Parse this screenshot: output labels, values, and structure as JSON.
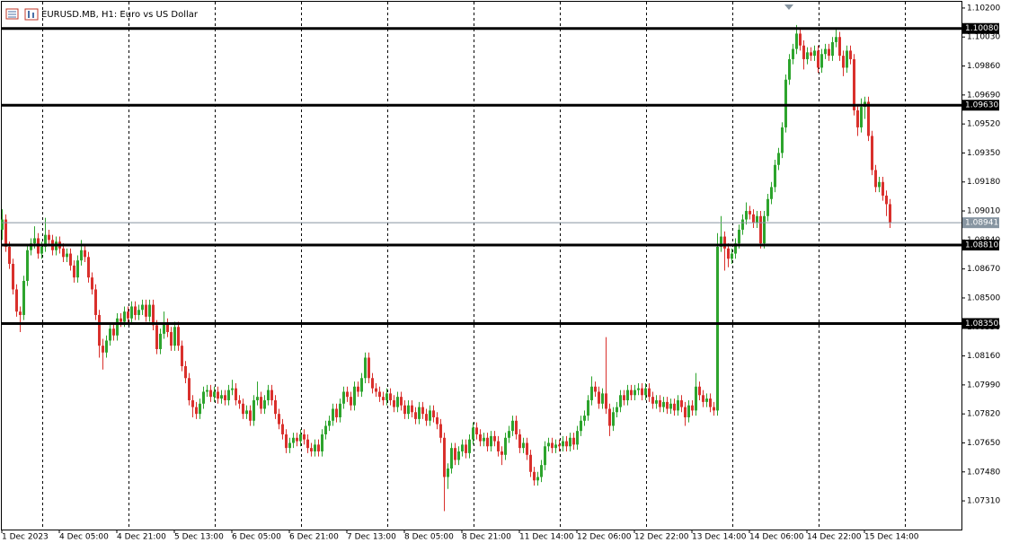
{
  "chart_data": {
    "type": "candlestick",
    "title": "EURUSD.MB, H1: Euro vs US Dollar",
    "up_color": "#2da42d",
    "down_color": "#d9302c",
    "level_color": "#000000",
    "current_color": "#8795a1",
    "xlim": [
      -0.5,
      267
    ],
    "ylim": [
      1.07142,
      1.10247
    ],
    "xticks": [
      {
        "value": 0,
        "label": "1 Dec 2023"
      },
      {
        "value": 16,
        "label": "4 Dec 05:00"
      },
      {
        "value": 32,
        "label": "4 Dec 21:00"
      },
      {
        "value": 48,
        "label": "5 Dec 13:00"
      },
      {
        "value": 64,
        "label": "6 Dec 05:00"
      },
      {
        "value": 80,
        "label": "6 Dec 21:00"
      },
      {
        "value": 96,
        "label": "7 Dec 13:00"
      },
      {
        "value": 112,
        "label": "8 Dec 05:00"
      },
      {
        "value": 128,
        "label": "8 Dec 21:00"
      },
      {
        "value": 144,
        "label": "11 Dec 14:00"
      },
      {
        "value": 160,
        "label": "12 Dec 06:00"
      },
      {
        "value": 176,
        "label": "12 Dec 22:00"
      },
      {
        "value": 192,
        "label": "13 Dec 14:00"
      },
      {
        "value": 208,
        "label": "14 Dec 06:00"
      },
      {
        "value": 224,
        "label": "14 Dec 22:00"
      },
      {
        "value": 240,
        "label": "15 Dec 14:00"
      }
    ],
    "yticks": [
      {
        "value": 1.102,
        "label": "1.10200"
      },
      {
        "value": 1.1003,
        "label": "1.10030"
      },
      {
        "value": 1.0986,
        "label": "1.09860"
      },
      {
        "value": 1.0969,
        "label": "1.09690"
      },
      {
        "value": 1.0952,
        "label": "1.09520"
      },
      {
        "value": 1.0935,
        "label": "1.09350"
      },
      {
        "value": 1.0918,
        "label": "1.09180"
      },
      {
        "value": 1.0901,
        "label": "1.09010"
      },
      {
        "value": 1.0884,
        "label": "1.08840"
      },
      {
        "value": 1.0867,
        "label": "1.08670"
      },
      {
        "value": 1.085,
        "label": "1.08500"
      },
      {
        "value": 1.0833,
        "label": "1.08330"
      },
      {
        "value": 1.0816,
        "label": "1.08160"
      },
      {
        "value": 1.0799,
        "label": "1.07990"
      },
      {
        "value": 1.0782,
        "label": "1.07820"
      },
      {
        "value": 1.0765,
        "label": "1.07650"
      },
      {
        "value": 1.0748,
        "label": "1.07480"
      },
      {
        "value": 1.0731,
        "label": "1.07310"
      }
    ],
    "levels": [
      {
        "value": 1.1008,
        "label": "1.10080"
      },
      {
        "value": 1.0963,
        "label": "1.09630"
      },
      {
        "value": 1.0881,
        "label": "1.08810"
      },
      {
        "value": 1.0835,
        "label": "1.08350"
      }
    ],
    "current_price": {
      "value": 1.08941,
      "label": "1.08941"
    },
    "open": [
      1.089,
      1.0896,
      1.088,
      1.087,
      1.0855,
      1.0842,
      1.084,
      1.086,
      1.0878,
      1.0882,
      1.0885,
      1.0876,
      1.088,
      1.0887,
      1.0884,
      1.0878,
      1.0883,
      1.0879,
      1.0874,
      1.0876,
      1.0869,
      1.0862,
      1.0872,
      1.0878,
      1.0874,
      1.0862,
      1.0855,
      1.084,
      1.0822,
      1.0818,
      1.0825,
      1.0832,
      1.0828,
      1.0838,
      1.0836,
      1.0842,
      1.0838,
      1.0845,
      1.084,
      1.0843,
      1.0846,
      1.0839,
      1.0846,
      1.0834,
      1.082,
      1.0829,
      1.0835,
      1.083,
      1.0822,
      1.0833,
      1.0822,
      1.081,
      1.0803,
      1.079,
      1.0786,
      1.0782,
      1.0788,
      1.0795,
      1.0796,
      1.0792,
      1.0795,
      1.0791,
      1.0793,
      1.079,
      1.0796,
      1.0797,
      1.079,
      1.0788,
      1.0782,
      1.0784,
      1.0778,
      1.079,
      1.0792,
      1.0785,
      1.079,
      1.0796,
      1.079,
      1.0782,
      1.0776,
      1.077,
      1.0762,
      1.0765,
      1.0768,
      1.0766,
      1.077,
      1.0767,
      1.0762,
      1.076,
      1.0764,
      1.076,
      1.077,
      1.0775,
      1.0778,
      1.0785,
      1.078,
      1.0788,
      1.0795,
      1.0792,
      1.0787,
      1.0798,
      1.0795,
      1.0803,
      1.0815,
      1.0803,
      1.0797,
      1.0795,
      1.0792,
      1.079,
      1.0794,
      1.079,
      1.0786,
      1.0792,
      1.0787,
      1.0782,
      1.0787,
      1.0783,
      1.0779,
      1.0786,
      1.0782,
      1.0778,
      1.0784,
      1.078,
      1.0776,
      1.0768,
      1.0745,
      1.075,
      1.0762,
      1.0755,
      1.076,
      1.0764,
      1.0759,
      1.0767,
      1.0774,
      1.077,
      1.0766,
      1.0768,
      1.0763,
      1.0769,
      1.0766,
      1.076,
      1.0758,
      1.0768,
      1.0772,
      1.0778,
      1.077,
      1.0762,
      1.0765,
      1.0758,
      1.0748,
      1.0743,
      1.0745,
      1.0752,
      1.0763,
      1.0765,
      1.0762,
      1.0764,
      1.0763,
      1.0766,
      1.0763,
      1.0768,
      1.0764,
      1.0772,
      1.0778,
      1.0781,
      1.079,
      1.0798,
      1.0795,
      1.0788,
      1.0794,
      1.0785,
      1.0775,
      1.0783,
      1.0786,
      1.0793,
      1.079,
      1.0796,
      1.0793,
      1.0796,
      1.0797,
      1.0793,
      1.0797,
      1.0792,
      1.0788,
      1.079,
      1.0786,
      1.0789,
      1.0785,
      1.0788,
      1.0784,
      1.079,
      1.0786,
      1.078,
      1.0787,
      1.0784,
      1.0798,
      1.0793,
      1.0789,
      1.0791,
      1.0786,
      1.0784,
      1.088,
      1.0886,
      1.0879,
      1.0873,
      1.0876,
      1.0882,
      1.089,
      1.0896,
      1.0901,
      1.0899,
      1.0894,
      1.0898,
      1.0882,
      1.0898,
      1.0908,
      1.0915,
      1.0928,
      1.0935,
      1.095,
      1.0978,
      1.099,
      1.0996,
      1.1005,
      1.0998,
      1.099,
      1.0994,
      1.0992,
      1.0995,
      1.0985,
      1.0993,
      1.0996,
      1.0992,
      1.1,
      1.1003,
      1.0992,
      1.0985,
      1.0995,
      1.099,
      1.096,
      1.095,
      1.0962,
      1.0965,
      1.0945,
      1.0925,
      1.0915,
      1.0918,
      1.091,
      1.0905
    ],
    "high": [
      1.0902,
      1.0899,
      1.0883,
      1.0873,
      1.0858,
      1.0845,
      1.0863,
      1.0881,
      1.0885,
      1.0892,
      1.0888,
      1.0883,
      1.0897,
      1.089,
      1.0887,
      1.0886,
      1.0886,
      1.0882,
      1.0879,
      1.0879,
      1.0872,
      1.0875,
      1.0884,
      1.0881,
      1.0877,
      1.0865,
      1.0858,
      1.0843,
      1.0826,
      1.0828,
      1.0835,
      1.0835,
      1.0841,
      1.0841,
      1.0845,
      1.0845,
      1.0848,
      1.0848,
      1.0846,
      1.0849,
      1.0849,
      1.0849,
      1.0849,
      1.0837,
      1.0832,
      1.0842,
      1.0838,
      1.0833,
      1.0836,
      1.0836,
      1.0825,
      1.0813,
      1.0806,
      1.0793,
      1.0789,
      1.0791,
      1.0798,
      1.0799,
      1.0799,
      1.0798,
      1.0798,
      1.0796,
      1.0796,
      1.0799,
      1.0802,
      1.08,
      1.0793,
      1.0791,
      1.0787,
      1.0787,
      1.0793,
      1.0801,
      1.0795,
      1.0793,
      1.0799,
      1.0799,
      1.0793,
      1.0785,
      1.0779,
      1.0773,
      1.0768,
      1.0771,
      1.0771,
      1.0773,
      1.0773,
      1.077,
      1.0765,
      1.0767,
      1.0767,
      1.0773,
      1.0778,
      1.0781,
      1.0788,
      1.0788,
      1.0791,
      1.0798,
      1.0798,
      1.0795,
      1.0801,
      1.0801,
      1.0806,
      1.0818,
      1.0818,
      1.0806,
      1.08,
      1.0798,
      1.0795,
      1.0797,
      1.0797,
      1.0793,
      1.0795,
      1.0795,
      1.079,
      1.079,
      1.079,
      1.0786,
      1.0789,
      1.0789,
      1.0785,
      1.0787,
      1.0787,
      1.0783,
      1.0779,
      1.0771,
      1.0753,
      1.0765,
      1.0765,
      1.0763,
      1.0767,
      1.0767,
      1.077,
      1.0777,
      1.0777,
      1.0773,
      1.0771,
      1.0771,
      1.0772,
      1.0772,
      1.0769,
      1.0763,
      1.0771,
      1.0775,
      1.0781,
      1.0781,
      1.0773,
      1.0768,
      1.0768,
      1.0761,
      1.0751,
      1.0748,
      1.0755,
      1.0766,
      1.0768,
      1.0768,
      1.0767,
      1.0767,
      1.0769,
      1.0769,
      1.0771,
      1.0771,
      1.0775,
      1.0781,
      1.0784,
      1.0793,
      1.0804,
      1.0801,
      1.0798,
      1.0797,
      1.0827,
      1.0788,
      1.0786,
      1.0789,
      1.0796,
      1.0796,
      1.0799,
      1.0799,
      1.0799,
      1.08,
      1.08,
      1.08,
      1.08,
      1.0795,
      1.0793,
      1.0793,
      1.0792,
      1.0792,
      1.0791,
      1.0791,
      1.0793,
      1.0793,
      1.0789,
      1.079,
      1.079,
      1.0806,
      1.0801,
      1.0796,
      1.0794,
      1.0794,
      1.0789,
      1.0888,
      1.0898,
      1.0889,
      1.0882,
      1.0879,
      1.0885,
      1.0893,
      1.0899,
      1.0906,
      1.0904,
      1.0902,
      1.0901,
      1.0901,
      1.0901,
      1.0911,
      1.0918,
      1.0931,
      1.0938,
      1.0953,
      1.0981,
      1.0993,
      1.0999,
      1.101,
      1.1008,
      1.1001,
      1.0997,
      1.0997,
      1.0998,
      1.0998,
      1.0996,
      1.0999,
      1.0999,
      1.1003,
      1.1008,
      1.1006,
      1.0995,
      1.0998,
      1.0998,
      1.0993,
      1.0963,
      1.0967,
      1.0968,
      1.0968,
      1.0948,
      1.0928,
      1.0921,
      1.0921,
      1.0913,
      1.0908
    ],
    "low": [
      1.0884,
      1.0877,
      1.0867,
      1.0852,
      1.0839,
      1.083,
      1.0837,
      1.0857,
      1.0875,
      1.0879,
      1.0873,
      1.0873,
      1.0877,
      1.0881,
      1.0875,
      1.0875,
      1.0876,
      1.0871,
      1.0871,
      1.0866,
      1.0859,
      1.0859,
      1.0869,
      1.0871,
      1.0859,
      1.0852,
      1.0837,
      1.0815,
      1.0808,
      1.0815,
      1.0822,
      1.0825,
      1.0825,
      1.0833,
      1.0833,
      1.0835,
      1.0835,
      1.0837,
      1.0837,
      1.084,
      1.0836,
      1.0836,
      1.0831,
      1.0817,
      1.0817,
      1.0826,
      1.0827,
      1.0819,
      1.0819,
      1.0819,
      1.0807,
      1.08,
      1.0787,
      1.078,
      1.0779,
      1.0779,
      1.0785,
      1.0792,
      1.0789,
      1.0789,
      1.0788,
      1.0788,
      1.0787,
      1.0787,
      1.0793,
      1.0787,
      1.0785,
      1.0779,
      1.0779,
      1.0775,
      1.0775,
      1.0787,
      1.0782,
      1.0782,
      1.0787,
      1.0787,
      1.0779,
      1.0773,
      1.0767,
      1.0759,
      1.0759,
      1.0762,
      1.0763,
      1.0763,
      1.0764,
      1.0759,
      1.0757,
      1.0757,
      1.0757,
      1.0757,
      1.0767,
      1.0772,
      1.0775,
      1.0777,
      1.0777,
      1.0785,
      1.0789,
      1.0784,
      1.0784,
      1.0792,
      1.0792,
      1.08,
      1.08,
      1.0794,
      1.0792,
      1.0789,
      1.0787,
      1.0787,
      1.0787,
      1.0783,
      1.0783,
      1.0784,
      1.0779,
      1.0779,
      1.078,
      1.0776,
      1.0776,
      1.0779,
      1.0775,
      1.0775,
      1.0777,
      1.0773,
      1.0765,
      1.0725,
      1.0738,
      1.0747,
      1.0752,
      1.0752,
      1.0757,
      1.0756,
      1.0756,
      1.0764,
      1.0767,
      1.0763,
      1.0763,
      1.076,
      1.076,
      1.0763,
      1.0757,
      1.0752,
      1.0755,
      1.0765,
      1.0769,
      1.0767,
      1.0759,
      1.0759,
      1.0755,
      1.0745,
      1.074,
      1.074,
      1.0742,
      1.0749,
      1.076,
      1.0759,
      1.0759,
      1.076,
      1.076,
      1.076,
      1.076,
      1.0761,
      1.0761,
      1.0769,
      1.0775,
      1.0778,
      1.0787,
      1.0792,
      1.0785,
      1.0785,
      1.0782,
      1.0769,
      1.0772,
      1.078,
      1.0783,
      1.0787,
      1.0787,
      1.079,
      1.079,
      1.0793,
      1.079,
      1.079,
      1.0789,
      1.0785,
      1.0785,
      1.0783,
      1.0783,
      1.0782,
      1.0782,
      1.0781,
      1.0781,
      1.0783,
      1.0775,
      1.0777,
      1.0781,
      1.0781,
      1.079,
      1.0786,
      1.0786,
      1.0783,
      1.0781,
      1.0781,
      1.0877,
      1.0866,
      1.0868,
      1.087,
      1.0873,
      1.0879,
      1.0887,
      1.0893,
      1.0896,
      1.0891,
      1.0891,
      1.0879,
      1.0879,
      1.0895,
      1.0905,
      1.0912,
      1.0925,
      1.0932,
      1.0947,
      1.0975,
      1.0987,
      1.0993,
      1.0995,
      1.0984,
      1.0987,
      1.0989,
      1.0989,
      1.0982,
      1.0982,
      1.099,
      1.0989,
      1.0989,
      1.0997,
      1.0989,
      1.098,
      1.0982,
      1.0987,
      1.0957,
      1.0945,
      1.0947,
      1.0955,
      1.0942,
      1.0922,
      1.0912,
      1.0912,
      1.0907,
      1.0898,
      1.0891
    ],
    "close": [
      1.0896,
      1.088,
      1.087,
      1.0855,
      1.0842,
      1.084,
      1.086,
      1.0878,
      1.0882,
      1.0885,
      1.0876,
      1.088,
      1.0887,
      1.0884,
      1.0878,
      1.0883,
      1.0879,
      1.0874,
      1.0876,
      1.0869,
      1.0862,
      1.0872,
      1.0878,
      1.0874,
      1.0862,
      1.0855,
      1.084,
      1.0822,
      1.0818,
      1.0825,
      1.0832,
      1.0828,
      1.0838,
      1.0836,
      1.0842,
      1.0838,
      1.0845,
      1.084,
      1.0843,
      1.0846,
      1.0839,
      1.0846,
      1.0834,
      1.082,
      1.0829,
      1.0835,
      1.083,
      1.0822,
      1.0833,
      1.0822,
      1.081,
      1.0803,
      1.079,
      1.0786,
      1.0782,
      1.0788,
      1.0795,
      1.0796,
      1.0792,
      1.0795,
      1.0791,
      1.0793,
      1.079,
      1.0796,
      1.0797,
      1.079,
      1.0788,
      1.0782,
      1.0784,
      1.0778,
      1.079,
      1.0792,
      1.0785,
      1.079,
      1.0796,
      1.079,
      1.0782,
      1.0776,
      1.077,
      1.0762,
      1.0765,
      1.0768,
      1.0766,
      1.077,
      1.0767,
      1.0762,
      1.076,
      1.0764,
      1.076,
      1.077,
      1.0775,
      1.0778,
      1.0785,
      1.078,
      1.0788,
      1.0795,
      1.0792,
      1.0787,
      1.0798,
      1.0795,
      1.0803,
      1.0815,
      1.0803,
      1.0797,
      1.0795,
      1.0792,
      1.079,
      1.0794,
      1.079,
      1.0786,
      1.0792,
      1.0787,
      1.0782,
      1.0787,
      1.0783,
      1.0779,
      1.0786,
      1.0782,
      1.0778,
      1.0784,
      1.078,
      1.0776,
      1.0768,
      1.0745,
      1.075,
      1.0762,
      1.0755,
      1.076,
      1.0764,
      1.0759,
      1.0767,
      1.0774,
      1.077,
      1.0766,
      1.0768,
      1.0763,
      1.0769,
      1.0766,
      1.076,
      1.0758,
      1.0768,
      1.0772,
      1.0778,
      1.077,
      1.0762,
      1.0765,
      1.0758,
      1.0748,
      1.0743,
      1.0745,
      1.0752,
      1.0763,
      1.0765,
      1.0762,
      1.0764,
      1.0763,
      1.0766,
      1.0763,
      1.0768,
      1.0764,
      1.0772,
      1.0778,
      1.0781,
      1.079,
      1.0798,
      1.0795,
      1.0788,
      1.0794,
      1.0785,
      1.0775,
      1.0783,
      1.0786,
      1.0793,
      1.079,
      1.0796,
      1.0793,
      1.0796,
      1.0797,
      1.0793,
      1.0797,
      1.0792,
      1.0788,
      1.079,
      1.0786,
      1.0789,
      1.0785,
      1.0788,
      1.0784,
      1.079,
      1.0786,
      1.078,
      1.0787,
      1.0784,
      1.0798,
      1.0793,
      1.0789,
      1.0791,
      1.0786,
      1.0784,
      1.088,
      1.0886,
      1.0879,
      1.0873,
      1.0876,
      1.0882,
      1.089,
      1.0896,
      1.0901,
      1.0899,
      1.0894,
      1.0898,
      1.0882,
      1.0898,
      1.0908,
      1.0915,
      1.0928,
      1.0935,
      1.095,
      1.0978,
      1.099,
      1.0996,
      1.1005,
      1.0998,
      1.099,
      1.0994,
      1.0992,
      1.0995,
      1.0985,
      1.0993,
      1.0996,
      1.0992,
      1.1,
      1.1003,
      1.0992,
      1.0985,
      1.0995,
      1.099,
      1.096,
      1.095,
      1.0962,
      1.0965,
      1.0945,
      1.0925,
      1.0915,
      1.0918,
      1.091,
      1.0905,
      1.0894
    ]
  }
}
